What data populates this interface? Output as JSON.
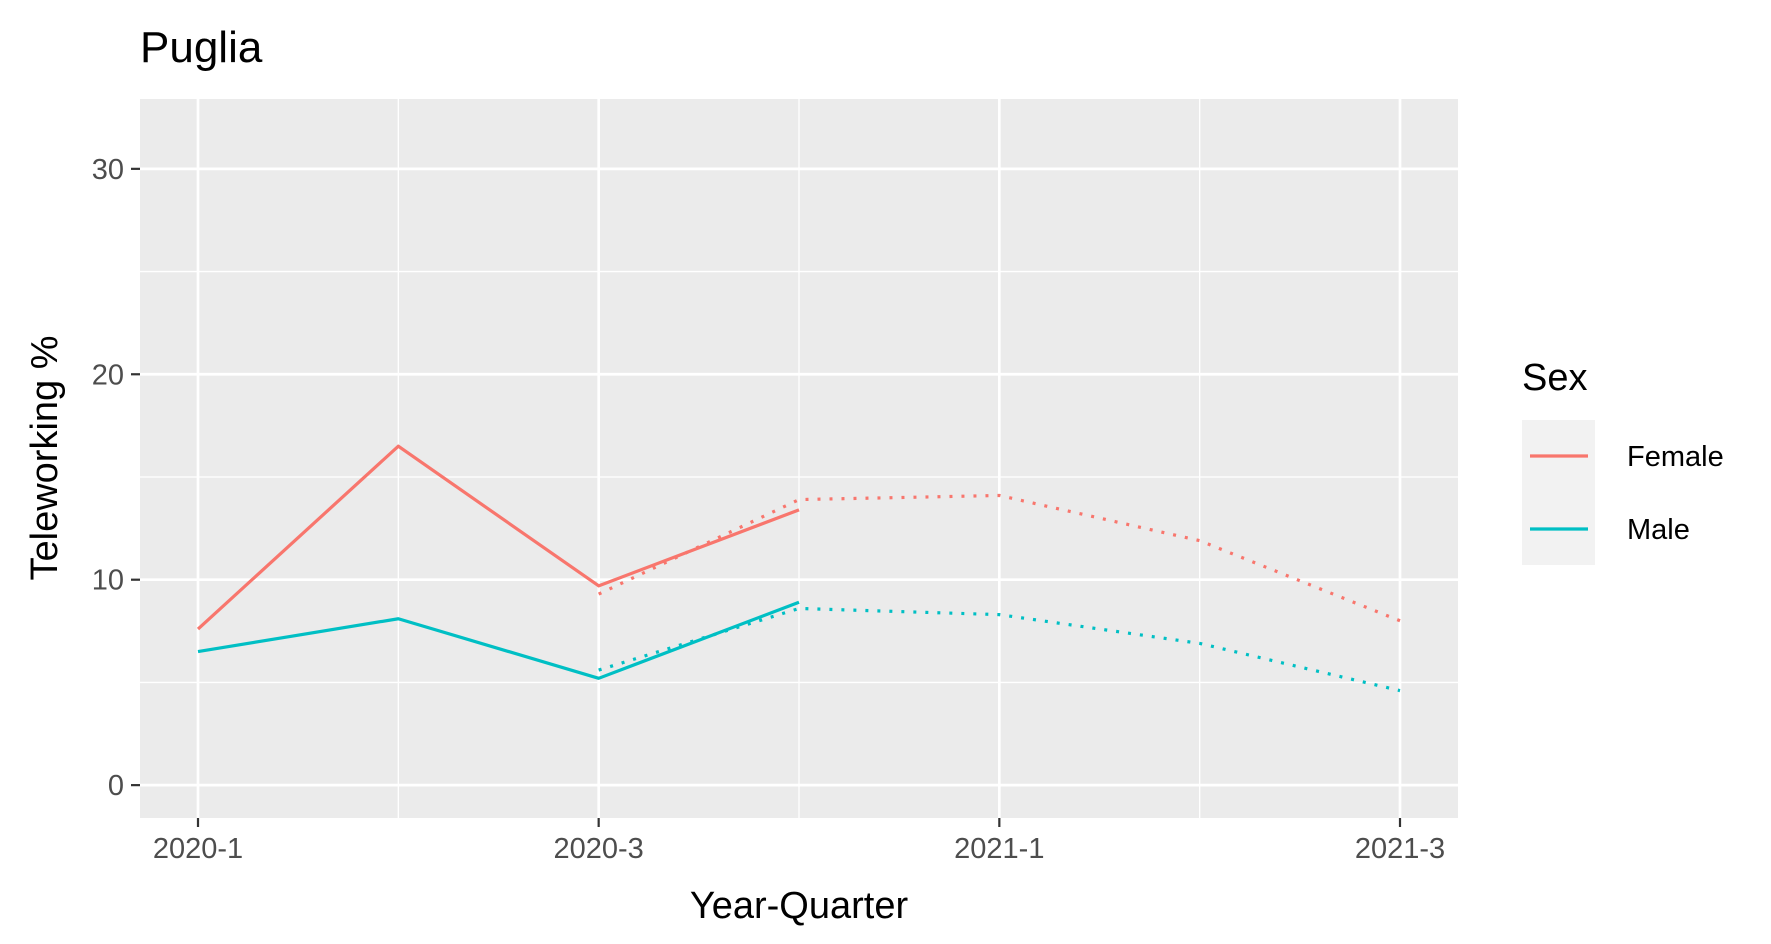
{
  "chart_data": {
    "type": "line",
    "title": "Puglia",
    "xlabel": "Year-Quarter",
    "ylabel": "Teleworking %",
    "x_tick_labels": [
      "2020-1",
      "2020-3",
      "2021-1",
      "2021-3"
    ],
    "x_categories": [
      "2020-1",
      "2020-2",
      "2020-3",
      "2020-4",
      "2021-1",
      "2021-2",
      "2021-3"
    ],
    "ylim": [
      -1.6,
      33.4
    ],
    "y_ticks": [
      0,
      10,
      20,
      30
    ],
    "grid": true,
    "legend": {
      "title": "Sex",
      "position": "right"
    },
    "series": [
      {
        "name": "Female",
        "color": "#F8766D",
        "observed": {
          "x": [
            "2020-1",
            "2020-2",
            "2020-3",
            "2020-4"
          ],
          "values": [
            7.6,
            16.5,
            9.7,
            13.4
          ]
        },
        "forecast": {
          "x": [
            "2020-3",
            "2020-4",
            "2021-1",
            "2021-2",
            "2021-3"
          ],
          "values": [
            9.3,
            13.9,
            14.1,
            11.9,
            8.0
          ]
        }
      },
      {
        "name": "Male",
        "color": "#00BFC4",
        "observed": {
          "x": [
            "2020-1",
            "2020-2",
            "2020-3",
            "2020-4"
          ],
          "values": [
            6.5,
            8.1,
            5.2,
            8.9
          ]
        },
        "forecast": {
          "x": [
            "2020-3",
            "2020-4",
            "2021-1",
            "2021-2",
            "2021-3"
          ],
          "values": [
            5.6,
            8.6,
            8.3,
            6.9,
            4.6
          ]
        }
      }
    ]
  }
}
